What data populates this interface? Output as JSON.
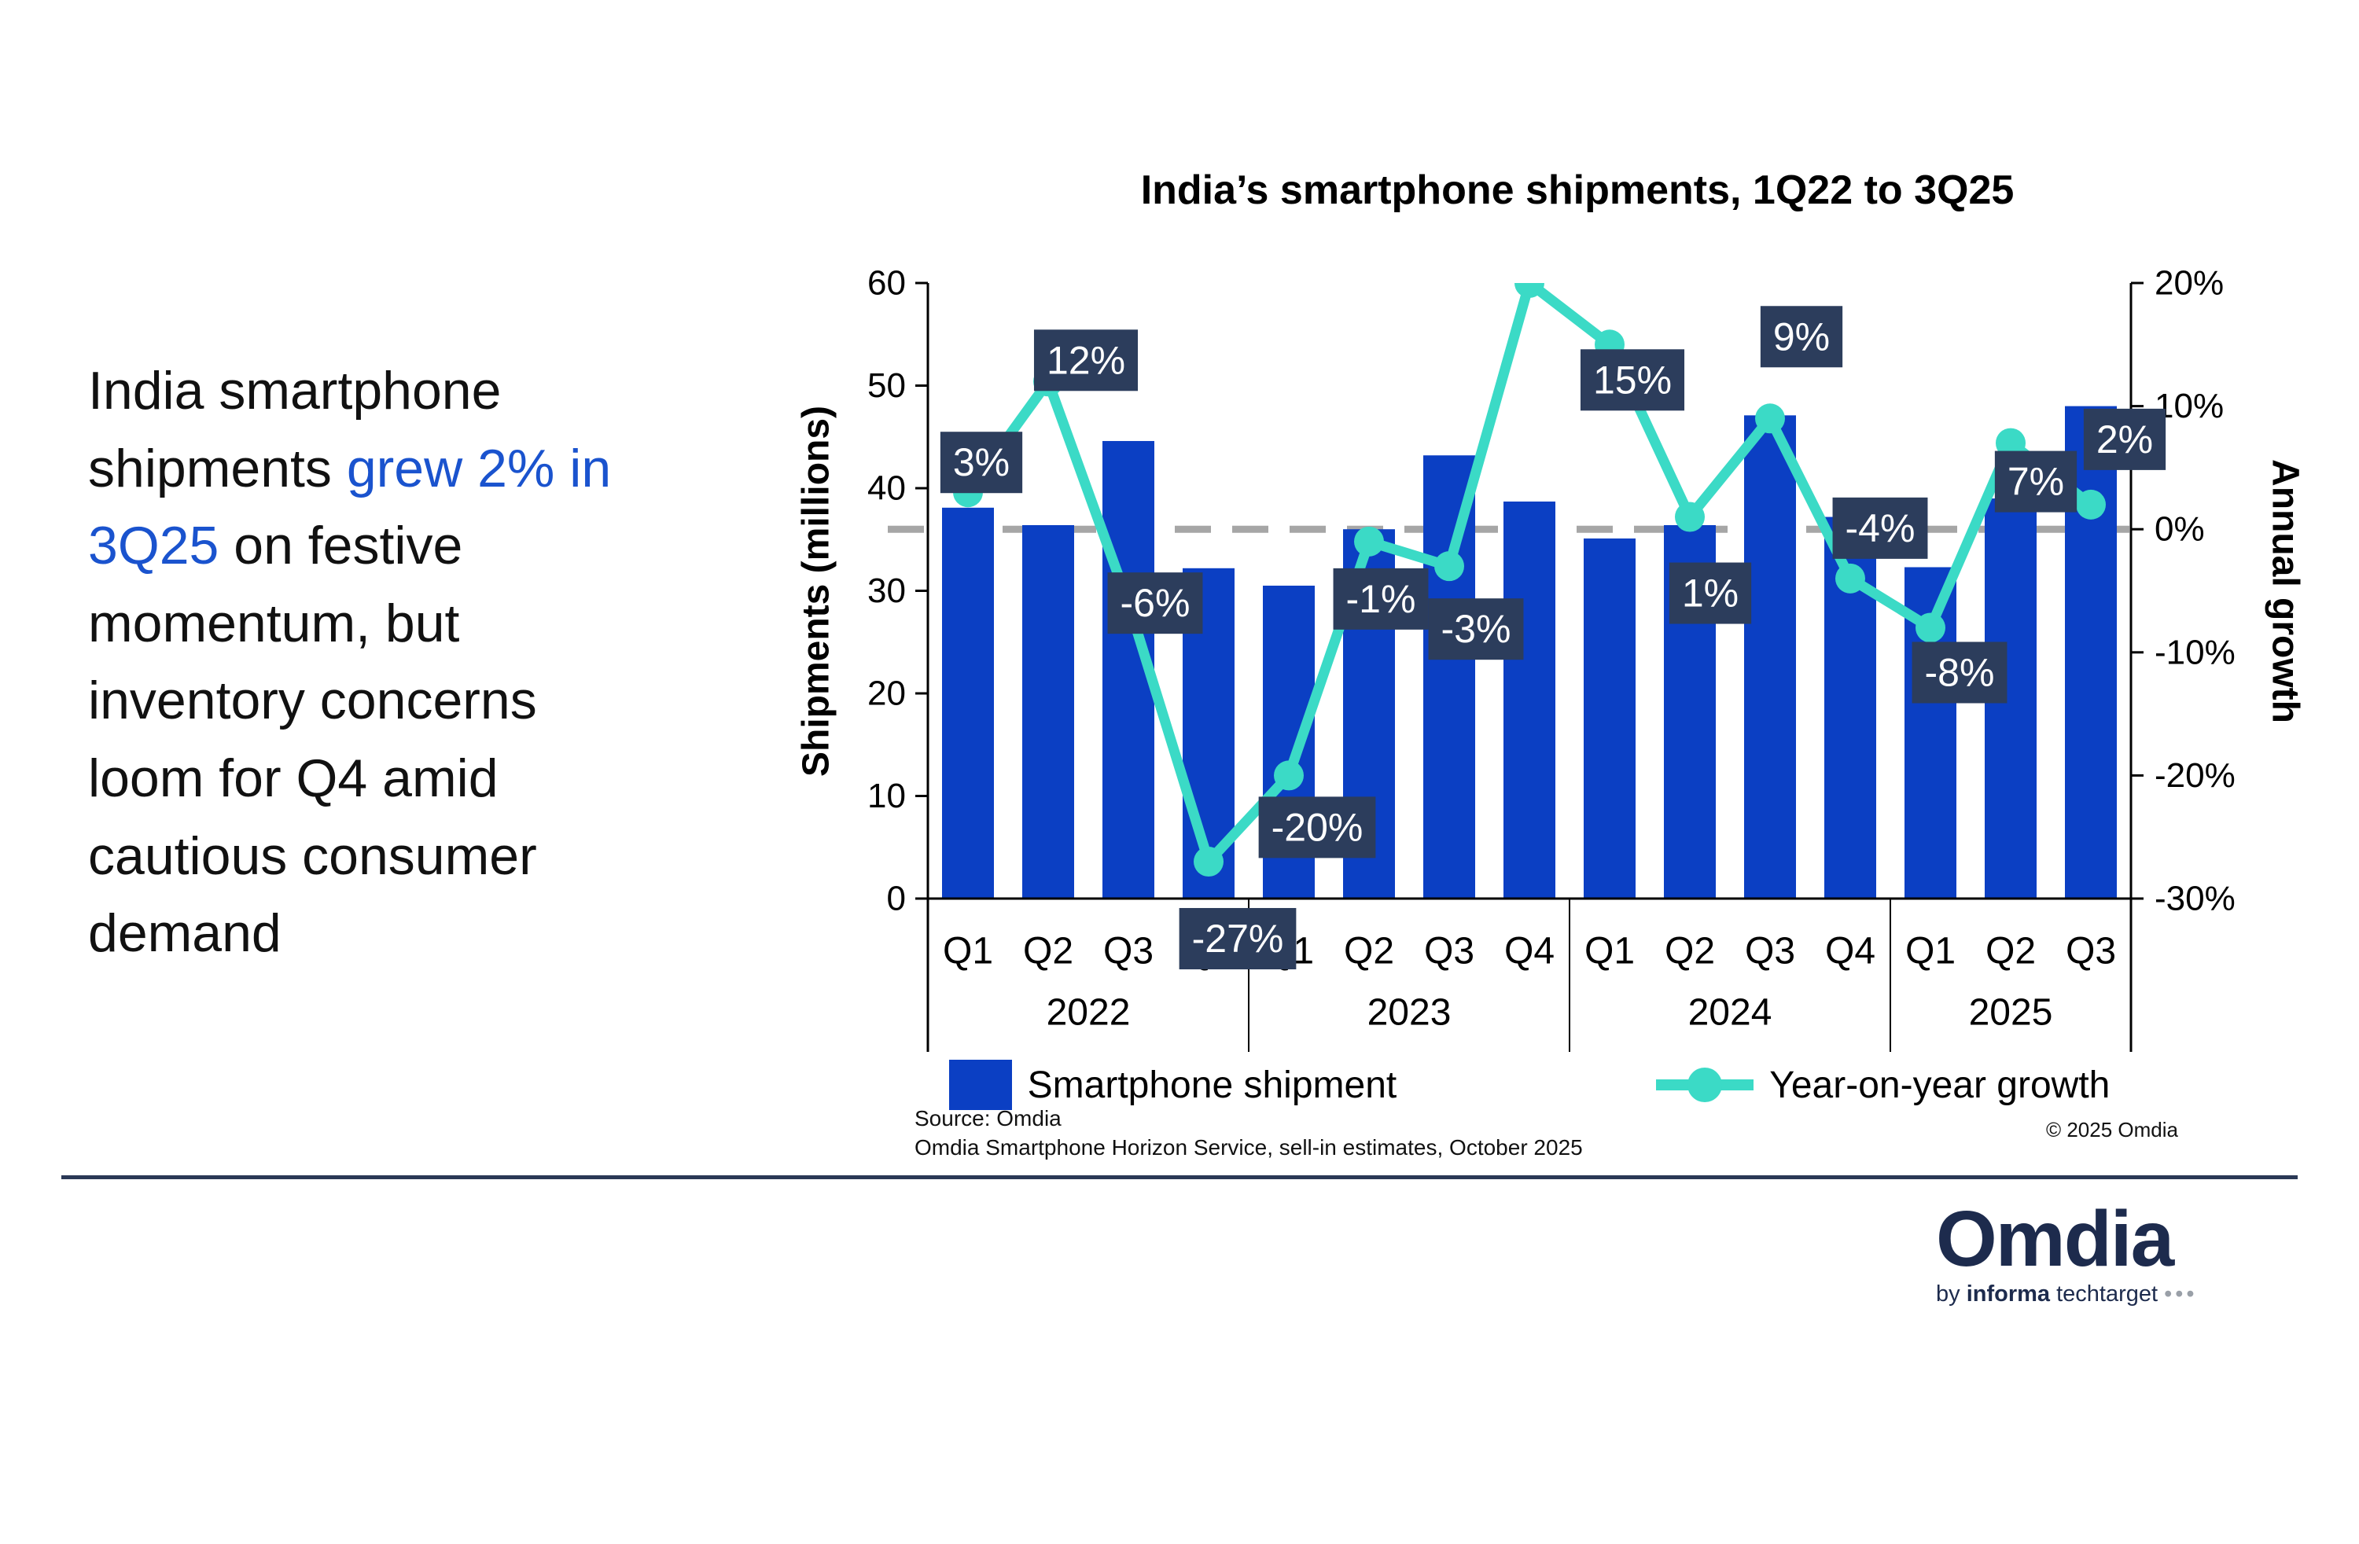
{
  "slide": {
    "commentary_prefix": "India smartphone\nshipments ",
    "commentary_highlight": "grew 2% in\n3Q25",
    "commentary_suffix": " on festive\nmomentum, but\ninventory concerns\nloom for Q4 amid\ncautious consumer\ndemand",
    "highlight_color": "#1A53CE"
  },
  "chart_data": {
    "type": "bar+line",
    "title": "India’s smartphone shipments, 1Q22 to 3Q25",
    "categories": [
      "Q1",
      "Q2",
      "Q3",
      "Q4",
      "Q1",
      "Q2",
      "Q3",
      "Q4",
      "Q1",
      "Q2",
      "Q3",
      "Q4",
      "Q1",
      "Q2",
      "Q3"
    ],
    "year_groups": [
      {
        "label": "2022",
        "count": 4
      },
      {
        "label": "2023",
        "count": 4
      },
      {
        "label": "2024",
        "count": 4
      },
      {
        "label": "2025",
        "count": 3
      }
    ],
    "series": [
      {
        "name": "Smartphone shipment",
        "type": "bar",
        "axis": "left",
        "color": "#0B3FC3",
        "values": [
          38.1,
          36.4,
          44.6,
          32.2,
          30.5,
          36.0,
          43.2,
          38.7,
          35.1,
          36.4,
          47.1,
          37.2,
          32.3,
          39.0,
          48.0
        ]
      },
      {
        "name": "Year-on-year growth",
        "type": "line",
        "axis": "right",
        "color": "#3BDAC6",
        "values_pct": [
          3,
          12,
          -6,
          -27,
          -20,
          -1,
          -3,
          20,
          15,
          1,
          9,
          -4,
          -8,
          7,
          2
        ],
        "point_labels": [
          "3%",
          "12%",
          "-6%",
          "-27%",
          "-20%",
          "-1%",
          "-3%",
          null,
          "15%",
          "1%",
          "9%",
          "-4%",
          "-8%",
          "7%",
          "2%"
        ]
      }
    ],
    "left_axis": {
      "label": "Shipments (millions)",
      "range": [
        0,
        60
      ],
      "ticks": [
        0,
        10,
        20,
        30,
        40,
        50,
        60
      ]
    },
    "right_axis": {
      "label": "Annual growth",
      "range": [
        -30,
        20
      ],
      "ticks_pct": [
        20,
        10,
        0,
        -10,
        -20,
        -30
      ],
      "tick_labels": [
        "20%",
        "10%",
        "0%",
        "-10%",
        "-20%",
        "-30%"
      ]
    },
    "baseline_pct": 0,
    "grid": "single dashed horizontal baseline at 0% growth",
    "legend_position": "bottom-center",
    "colors": {
      "label_box": "#2C3D5C",
      "label_text": "#FFFFFF",
      "baseline_dash": "#A6A6A6",
      "axis": "#000000"
    },
    "label_offsets": [
      [
        17,
        -38
      ],
      [
        48,
        -27
      ],
      [
        34,
        0
      ],
      [
        37,
        98
      ],
      [
        36,
        66
      ],
      [
        15,
        73
      ],
      [
        34,
        80
      ],
      null,
      [
        29,
        45
      ],
      [
        26,
        97
      ],
      [
        40,
        -104
      ],
      [
        38,
        -64
      ],
      [
        37,
        57
      ],
      [
        32,
        49
      ],
      [
        43,
        -83
      ]
    ]
  },
  "footer": {
    "source_line1": "Source: Omdia",
    "source_line2": "Omdia Smartphone Horizon Service, sell-in estimates, October 2025",
    "copyright": "© 2025 Omdia"
  },
  "logo": {
    "brand": "Omdia",
    "byline_by": "by ",
    "byline_informa": "informa",
    "byline_rest": " techtarget ",
    "byline_dots": "•••",
    "navy": "#1D2B4D"
  }
}
